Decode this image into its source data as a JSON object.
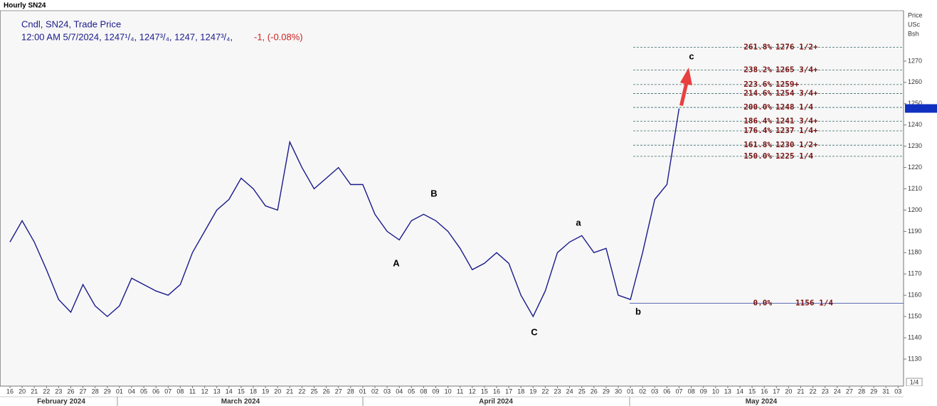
{
  "chart_data": {
    "type": "line",
    "title": "Hourly SN24",
    "subtitle": "Cndl, SN24, Trade Price",
    "ohlc_text": "12:00 AM 5/7/2024, 1247¹/₄, 1247³/₄, 1247, 1247³/₄,",
    "change_text": "-1, (-0.08%)",
    "y_axis_label": [
      "Price",
      "USc",
      "Bsh"
    ],
    "page_label": "1/4",
    "x": [
      "16",
      "20",
      "21",
      "22",
      "23",
      "26",
      "27",
      "28",
      "29",
      "01",
      "04",
      "05",
      "06",
      "07",
      "08",
      "11",
      "12",
      "13",
      "14",
      "15",
      "18",
      "19",
      "20",
      "21",
      "22",
      "25",
      "26",
      "27",
      "28",
      "01",
      "02",
      "03",
      "04",
      "05",
      "08",
      "09",
      "10",
      "11",
      "12",
      "15",
      "16",
      "17",
      "18",
      "19",
      "22",
      "23",
      "24",
      "25",
      "26",
      "29",
      "30",
      "01",
      "02",
      "03",
      "06",
      "07",
      "08",
      "09",
      "10",
      "13",
      "14",
      "15",
      "16",
      "17",
      "20",
      "21",
      "22",
      "23",
      "24",
      "27",
      "28",
      "29",
      "31",
      "03"
    ],
    "x_groups": [
      "February 2024",
      "March 2024",
      "April 2024",
      "May 2024"
    ],
    "series": [
      {
        "name": "SN24",
        "color": "#1a1a8c",
        "values": [
          1185,
          1195,
          1185,
          1172,
          1158,
          1152,
          1165,
          1155,
          1150,
          1155,
          1168,
          1165,
          1162,
          1160,
          1165,
          1180,
          1190,
          1200,
          1205,
          1215,
          1210,
          1202,
          1200,
          1232,
          1220,
          1210,
          1215,
          1220,
          1212,
          1212,
          1198,
          1190,
          1186,
          1195,
          1198,
          1195,
          1190,
          1182,
          1172,
          1175,
          1180,
          1175,
          1160,
          1150,
          1162,
          1180,
          1185,
          1188,
          1180,
          1182,
          1160,
          1158,
          1180,
          1205,
          1212,
          1247.75,
          null,
          null,
          null,
          null,
          null,
          null,
          null,
          null,
          null,
          null,
          null,
          null,
          null,
          null,
          null,
          null,
          null,
          null
        ]
      }
    ],
    "ylim": [
      1117.3,
      1293.7
    ],
    "yticks": [
      1130,
      1140,
      1150,
      1160,
      1170,
      1180,
      1190,
      1200,
      1210,
      1220,
      1230,
      1240,
      1250,
      1260,
      1270
    ],
    "fib_levels": [
      {
        "label": "261.8%",
        "price": {
          "value": 1276.5,
          "label": "1276 1/2+"
        }
      },
      {
        "label": "238.2%",
        "price": {
          "value": 1265.75,
          "label": "1265 3/4+"
        }
      },
      {
        "label": "223.6%",
        "price": {
          "value": 1259,
          "label": "1259+"
        }
      },
      {
        "label": "214.6%",
        "price": {
          "value": 1254.75,
          "label": "1254 3/4+"
        }
      },
      {
        "label": "200.0%",
        "price": {
          "value": 1248.25,
          "label": "1248 1/4"
        }
      },
      {
        "label": "186.4%",
        "price": {
          "value": 1241.75,
          "label": "1241 3/4+"
        }
      },
      {
        "label": "176.4%",
        "price": {
          "value": 1237.25,
          "label": "1237 1/4+"
        }
      },
      {
        "label": "161.8%",
        "price": {
          "value": 1230.5,
          "label": "1230 1/2+"
        }
      },
      {
        "label": "150.0%",
        "price": {
          "value": 1225.25,
          "label": "1225 1/4"
        }
      },
      {
        "label": "0.0%",
        "price": {
          "value": 1156.25,
          "label": "1156 1/4"
        }
      }
    ],
    "annotations": [
      "A",
      "B",
      "C",
      "a",
      "b",
      "c"
    ]
  }
}
